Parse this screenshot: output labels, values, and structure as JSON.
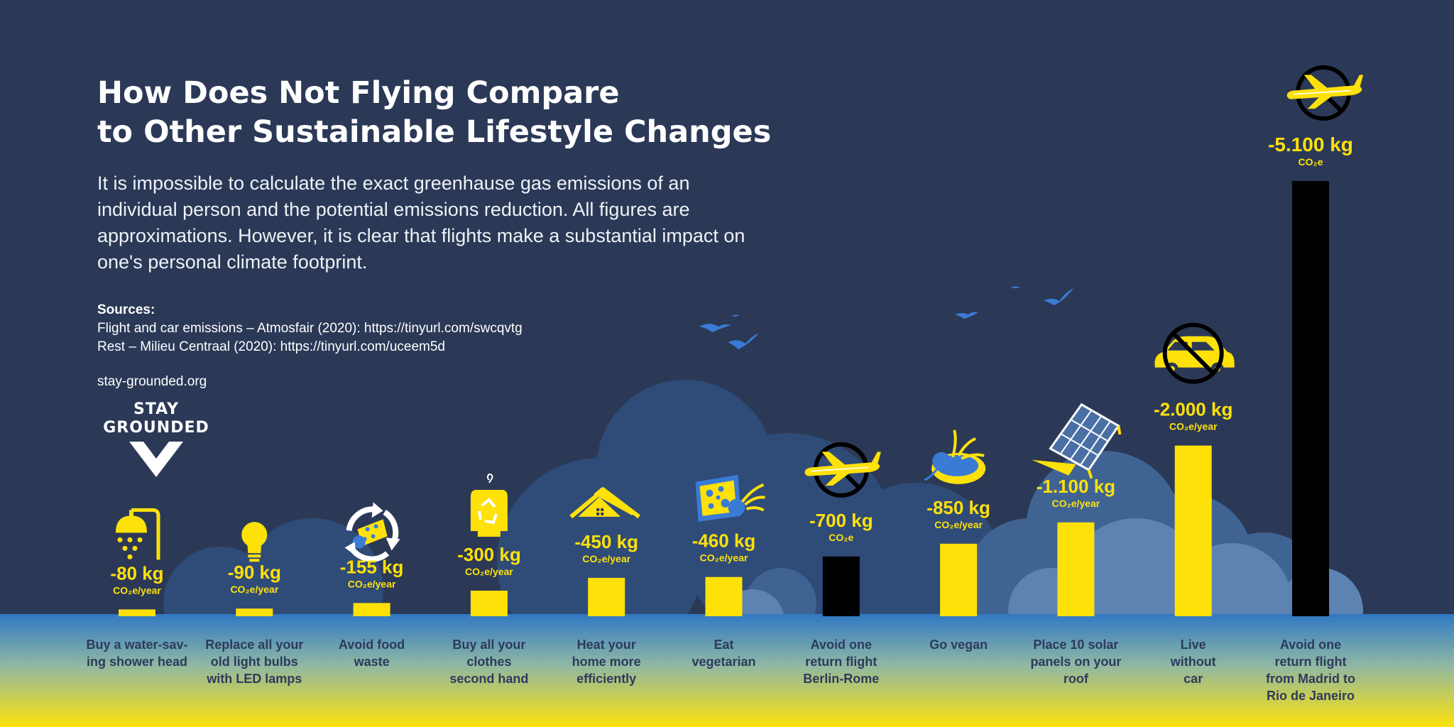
{
  "title_lines": [
    "How Does Not Flying Compare",
    "to Other Sustainable Lifestyle Changes"
  ],
  "intro": "It is impossible to calculate the exact greenhause gas emissions of an individual person and the potential emissions reduction. All figures are approximations. However, it is clear that flights make a substantial impact on one's personal climate footprint.",
  "sources": {
    "heading": "Sources:",
    "lines": [
      "Flight and car emissions – Atmosfair (2020): https://tinyurl.com/swcqvtg",
      "Rest – Milieu Centraal (2020):  https://tinyurl.com/uceem5d"
    ]
  },
  "site": "stay-grounded.org",
  "logo_lines": [
    "STAY",
    "GROUNDED"
  ],
  "colors": {
    "background": "#2b3957",
    "accent": "#ffe10a",
    "flight_bar": "#000000",
    "water": "#2f79c4",
    "label": "#2d3b5c",
    "icon_blue": "#3a7bd5"
  },
  "chart_data": {
    "type": "bar",
    "ylim": [
      0,
      5100
    ],
    "grid": false,
    "legend": "none",
    "items": [
      {
        "label": "Buy a water-sav-\ning shower head",
        "value": 80,
        "display": "-80 kg",
        "unit": "CO₂e/year",
        "kind": "lifestyle",
        "icon": "shower-icon"
      },
      {
        "label": "Replace all your\nold light bulbs\nwith LED lamps",
        "value": 90,
        "display": "-90 kg",
        "unit": "CO₂e/year",
        "kind": "lifestyle",
        "icon": "lightbulb-icon"
      },
      {
        "label": "Avoid food\nwaste",
        "value": 155,
        "display": "-155 kg",
        "unit": "CO₂e/year",
        "kind": "lifestyle",
        "icon": "recycle-food-icon"
      },
      {
        "label": "Buy all your\nclothes\nsecond hand",
        "value": 300,
        "display": "-300 kg",
        "unit": "CO₂e/year",
        "kind": "lifestyle",
        "icon": "clothes-recycle-icon"
      },
      {
        "label": "Heat your\nhome more\nefficiently",
        "value": 450,
        "display": "-450 kg",
        "unit": "CO₂e/year",
        "kind": "lifestyle",
        "icon": "house-icon"
      },
      {
        "label": "Eat\nvegetarian",
        "value": 460,
        "display": "-460 kg",
        "unit": "CO₂e/year",
        "kind": "lifestyle",
        "icon": "cheese-icon"
      },
      {
        "label": "Avoid one\nreturn flight\nBerlin-Rome",
        "value": 700,
        "display": "-700 kg",
        "unit": "CO₂e",
        "kind": "flight",
        "icon": "no-plane-icon"
      },
      {
        "label": "Go vegan",
        "value": 850,
        "display": "-850 kg",
        "unit": "CO₂e/year",
        "kind": "lifestyle",
        "icon": "vegan-food-icon"
      },
      {
        "label": "Place 10 solar\npanels on your\nroof",
        "value": 1100,
        "display": "-1.100 kg",
        "unit": "CO₂e/year",
        "kind": "lifestyle",
        "icon": "solar-panel-icon"
      },
      {
        "label": "Live\nwithout\ncar",
        "value": 2000,
        "display": "-2.000 kg",
        "unit": "CO₂e/year",
        "kind": "lifestyle",
        "icon": "no-car-icon"
      },
      {
        "label": "Avoid one\nreturn flight\nfrom Madrid to\nRio de Janeiro",
        "value": 5100,
        "display": "-5.100 kg",
        "unit": "CO₂e",
        "kind": "flight",
        "icon": "no-plane-icon"
      }
    ]
  }
}
